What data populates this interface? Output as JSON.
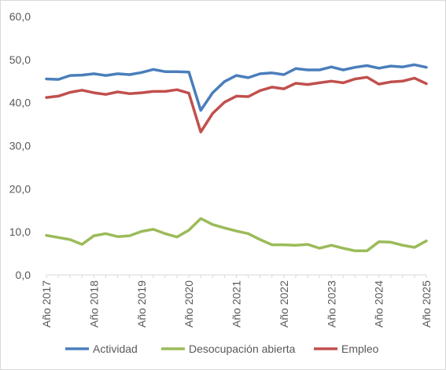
{
  "chart_data": {
    "type": "line",
    "title": "",
    "xlabel": "",
    "ylabel": "",
    "ylim": [
      0,
      60
    ],
    "y_ticks": [
      "0,0",
      "10,0",
      "20,0",
      "30,0",
      "40,0",
      "50,0",
      "60,0"
    ],
    "x_tick_labels": [
      "Año 2017",
      "Año 2018",
      "Año 2019",
      "Año 2020",
      "Año 2021",
      "Año 2022",
      "Año 2023",
      "Año 2024",
      "Año 2025"
    ],
    "x_tick_index": [
      0,
      4,
      8,
      12,
      16,
      20,
      24,
      28,
      32
    ],
    "grid": false,
    "legend_position": "bottom",
    "series": [
      {
        "name": "Actividad",
        "color": "#4a7ebb",
        "values": [
          45.5,
          45.4,
          46.3,
          46.4,
          46.7,
          46.3,
          46.7,
          46.5,
          47.0,
          47.7,
          47.2,
          47.2,
          47.1,
          38.2,
          42.3,
          44.9,
          46.3,
          45.8,
          46.7,
          46.9,
          46.5,
          47.9,
          47.6,
          47.6,
          48.3,
          47.6,
          48.2,
          48.6,
          48.0,
          48.5,
          48.3,
          48.8,
          48.2
        ]
      },
      {
        "name": "Desocupación abierta",
        "color": "#9bbb59",
        "values": [
          9.2,
          8.7,
          8.2,
          7.1,
          9.1,
          9.6,
          8.9,
          9.1,
          10.1,
          10.6,
          9.6,
          8.8,
          10.4,
          13.1,
          11.7,
          10.9,
          10.2,
          9.6,
          8.2,
          7.0,
          7.0,
          6.9,
          7.1,
          6.2,
          6.9,
          6.2,
          5.6,
          5.6,
          7.7,
          7.6,
          6.9,
          6.4,
          7.9
        ]
      },
      {
        "name": "Empleo",
        "color": "#c0504d",
        "values": [
          41.2,
          41.5,
          42.4,
          42.9,
          42.3,
          41.9,
          42.5,
          42.1,
          42.3,
          42.6,
          42.6,
          43.0,
          42.2,
          33.2,
          37.5,
          40.1,
          41.5,
          41.4,
          42.8,
          43.6,
          43.2,
          44.5,
          44.2,
          44.6,
          45.0,
          44.6,
          45.5,
          45.9,
          44.3,
          44.8,
          45.0,
          45.7,
          44.4
        ]
      }
    ]
  }
}
